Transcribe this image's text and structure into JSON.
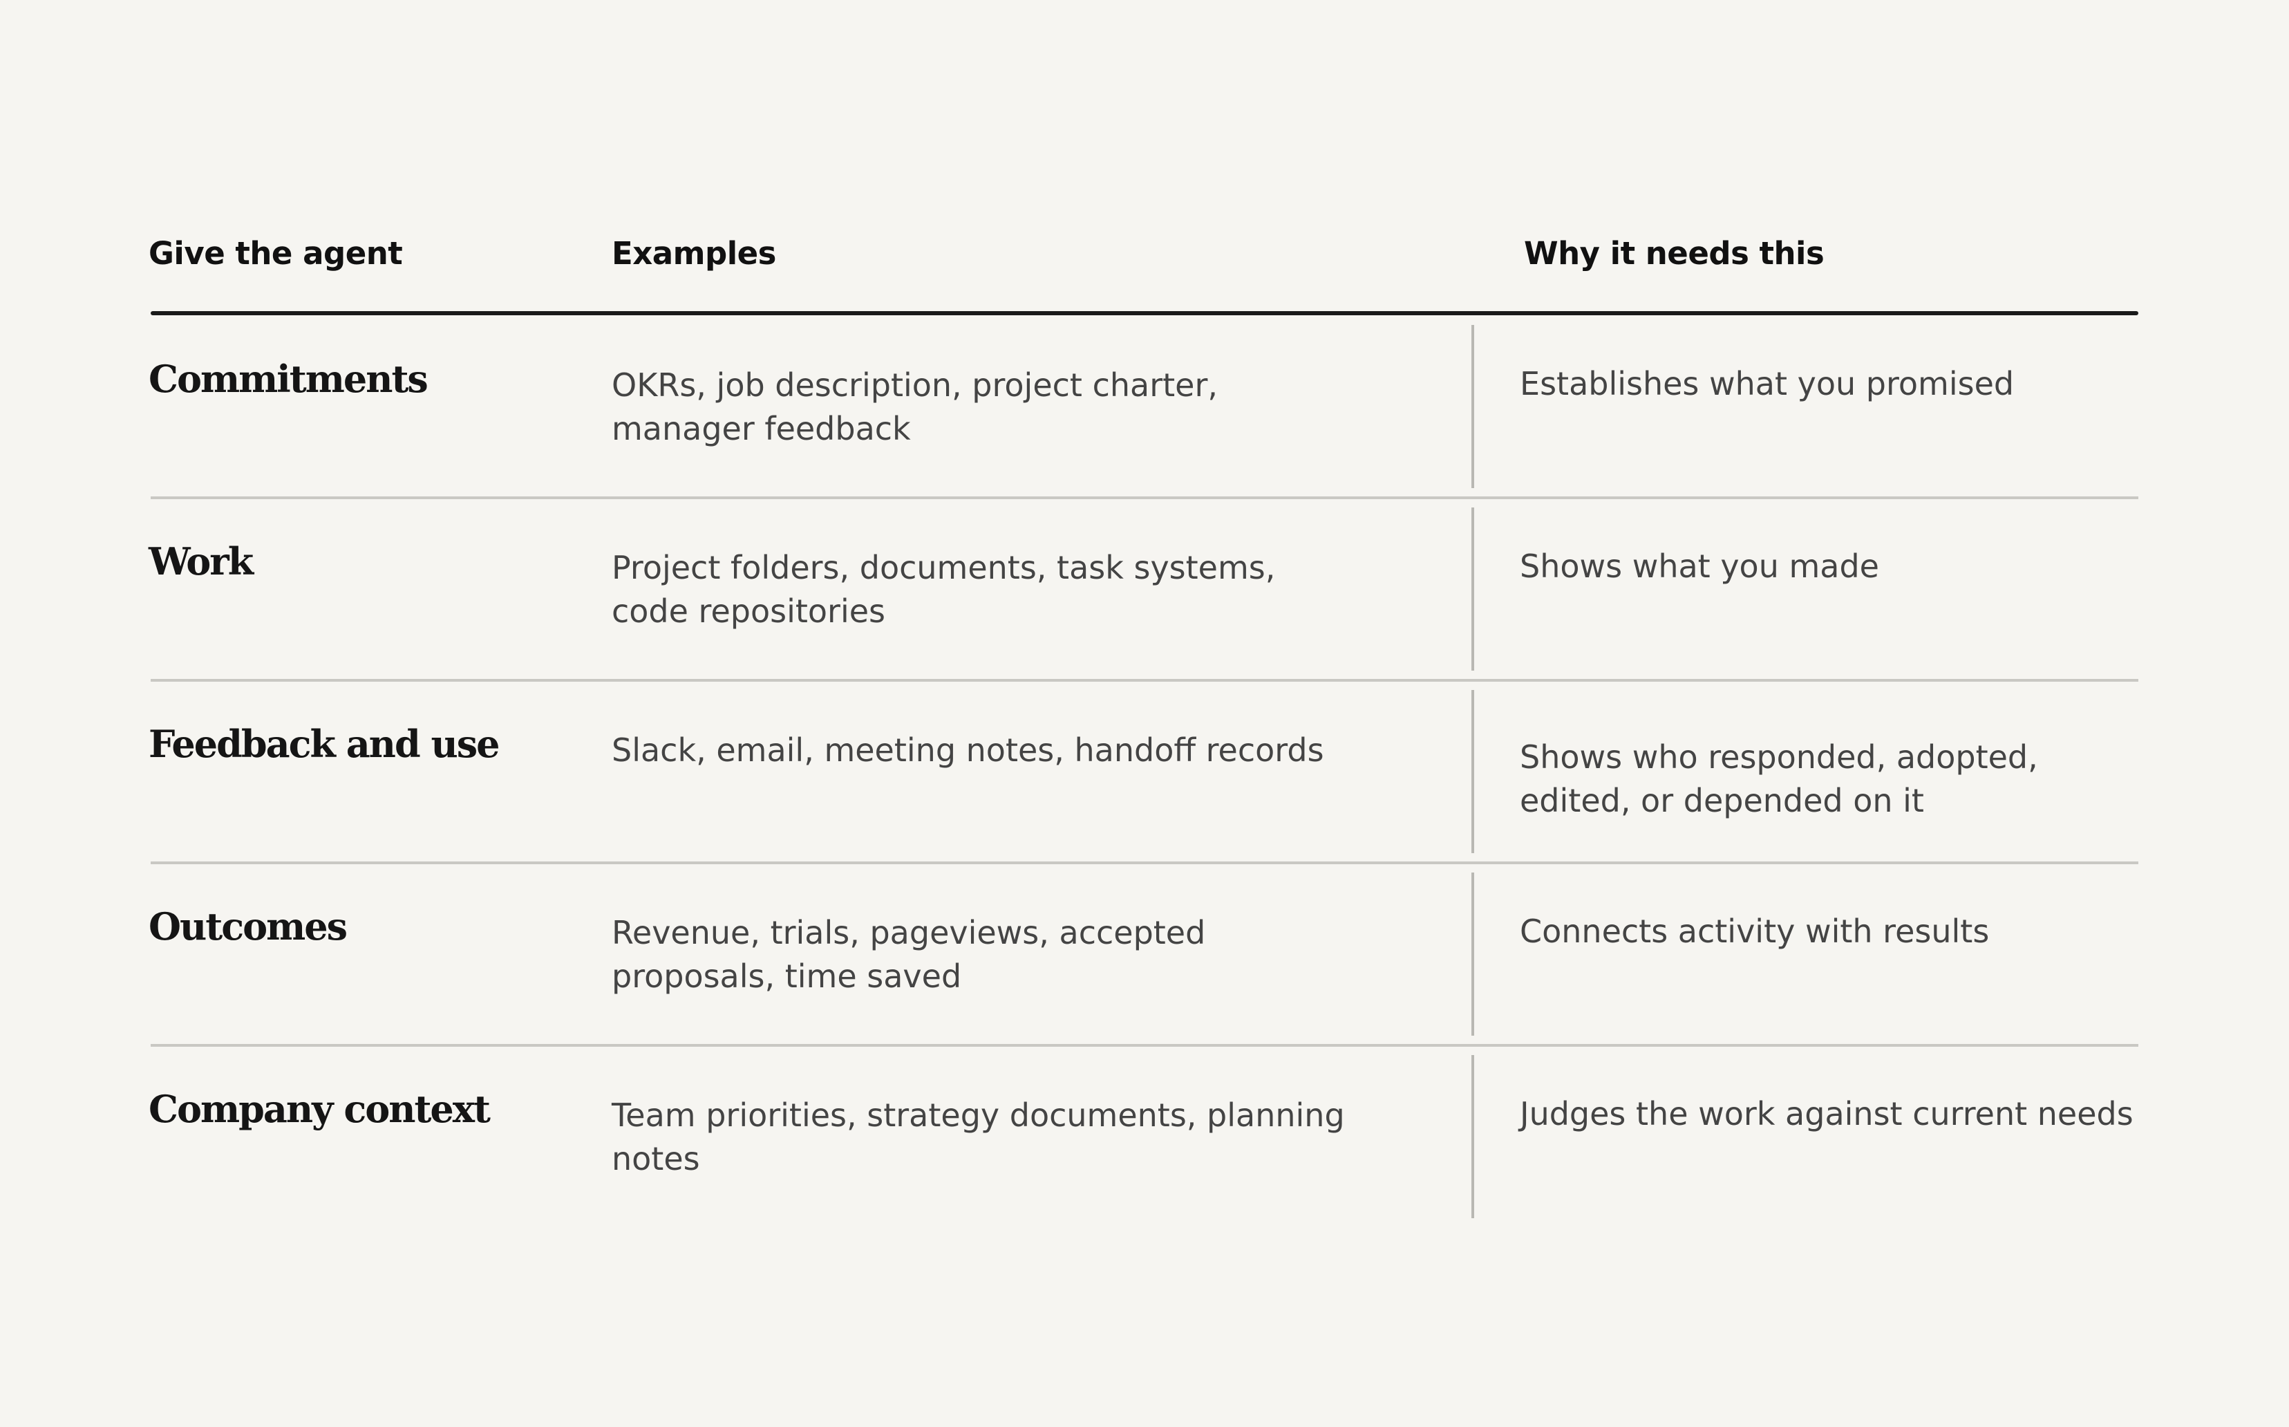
{
  "table": {
    "columns": [
      "Give the agent",
      "Examples",
      "Why it needs this"
    ],
    "rows": [
      [
        "Commitments",
        "OKRs, job description, project charter, manager feedback",
        "Establishes what you promised"
      ],
      [
        "Work",
        "Project folders, documents, task systems, code repositories",
        "Shows what you made"
      ],
      [
        "Feedback and use",
        "Slack, email, meeting notes, handoff records",
        "Shows who responded, adopted, edited, or depended on it"
      ],
      [
        "Outcomes",
        "Revenue, trials, pageviews, accepted proposals, time saved",
        "Connects activity with results"
      ],
      [
        "Company context",
        "Team priorities, strategy documents, planning notes",
        "Judges the work against current needs"
      ]
    ]
  }
}
